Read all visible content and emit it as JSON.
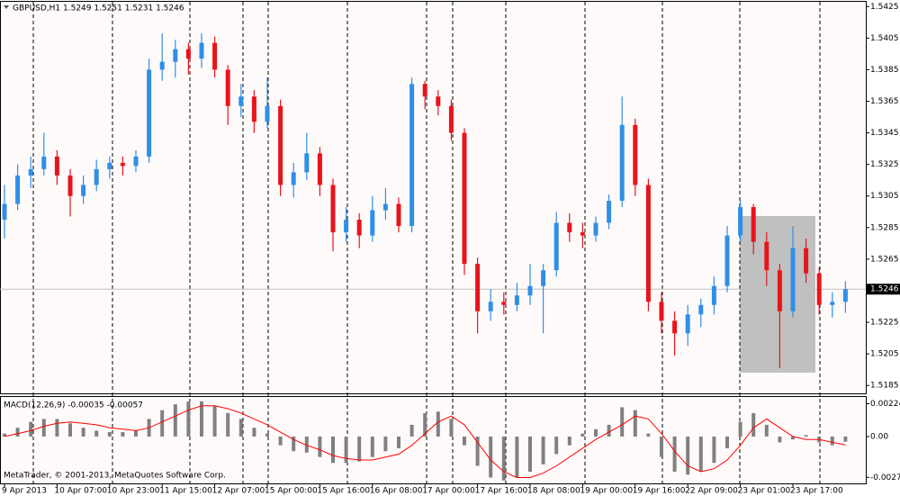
{
  "chart_data": [
    {
      "type": "candlestick",
      "title": "GBPUSD,H1  1.5249 1.5251 1.5231 1.5246",
      "categories": [
        "9 Apr 2013",
        null,
        null,
        null,
        "10 Apr 07:00",
        null,
        null,
        null,
        "10 Apr 23:00",
        null,
        null,
        null,
        "11 Apr 15:00",
        null,
        null,
        null,
        "12 Apr 07:00",
        null,
        null,
        null,
        "15 Apr 00:00",
        null,
        null,
        null,
        "15 Apr 16:00",
        null,
        null,
        null,
        "16 Apr 08:00",
        null,
        null,
        null,
        "17 Apr 00:00",
        null,
        null,
        null,
        "17 Apr 16:00",
        null,
        null,
        null,
        "18 Apr 08:00",
        null,
        null,
        null,
        "19 Apr 00:00",
        null,
        null,
        null,
        "19 Apr 16:00",
        null,
        null,
        null,
        "22 Apr 09:00",
        null,
        null,
        null,
        "23 Apr 01:00",
        null,
        null,
        null,
        "23 Apr 17:00",
        null,
        null,
        null,
        null
      ],
      "open": [
        1.529,
        1.53,
        1.5318,
        1.5322,
        1.533,
        1.5318,
        1.5305,
        1.5312,
        1.5322,
        1.5326,
        1.5324,
        1.533,
        1.5385,
        1.539,
        1.5398,
        1.5392,
        1.5402,
        1.5385,
        1.5362,
        1.5368,
        1.5352,
        1.5362,
        1.5312,
        1.532,
        1.5332,
        1.5312,
        1.5282,
        1.529,
        1.528,
        1.5296,
        1.53,
        1.5286,
        1.5376,
        1.5368,
        1.5362,
        1.5345,
        1.5262,
        1.5232,
        1.5238,
        1.5236,
        1.5242,
        1.5248,
        1.5258,
        1.5288,
        1.5282,
        1.528,
        1.5288,
        1.5302,
        1.535,
        1.5312,
        1.5238,
        1.5226,
        1.5218,
        1.523,
        1.5236,
        1.5248,
        1.528,
        1.5298,
        1.5276,
        1.5258,
        1.5232,
        1.5272,
        1.5256,
        1.5236,
        1.5238
      ],
      "high": [
        1.5312,
        1.5325,
        1.533,
        1.5345,
        1.5334,
        1.5322,
        1.5318,
        1.5328,
        1.533,
        1.533,
        1.5334,
        1.5392,
        1.5408,
        1.5404,
        1.5402,
        1.5408,
        1.5406,
        1.5388,
        1.5376,
        1.5372,
        1.538,
        1.5366,
        1.5326,
        1.5345,
        1.5336,
        1.5316,
        1.5298,
        1.5294,
        1.5305,
        1.531,
        1.5304,
        1.538,
        1.5378,
        1.5372,
        1.5366,
        1.5348,
        1.5266,
        1.5246,
        1.5244,
        1.525,
        1.5262,
        1.5262,
        1.5295,
        1.5294,
        1.5288,
        1.5292,
        1.5306,
        1.5368,
        1.5354,
        1.5316,
        1.5244,
        1.5232,
        1.5236,
        1.524,
        1.5254,
        1.5286,
        1.5302,
        1.53,
        1.5282,
        1.5262,
        1.5286,
        1.5278,
        1.526,
        1.5244,
        1.5251
      ],
      "low": [
        1.5278,
        1.5296,
        1.531,
        1.5318,
        1.5312,
        1.5292,
        1.53,
        1.5308,
        1.5316,
        1.5318,
        1.532,
        1.5326,
        1.5378,
        1.538,
        1.5382,
        1.5386,
        1.538,
        1.535,
        1.5355,
        1.5345,
        1.5348,
        1.5305,
        1.5304,
        1.5315,
        1.5305,
        1.527,
        1.5276,
        1.5272,
        1.5276,
        1.529,
        1.5282,
        1.5282,
        1.536,
        1.5356,
        1.534,
        1.5255,
        1.5218,
        1.5226,
        1.523,
        1.5232,
        1.5236,
        1.5218,
        1.5254,
        1.5276,
        1.5272,
        1.5276,
        1.5284,
        1.5298,
        1.5305,
        1.5232,
        1.5218,
        1.5204,
        1.521,
        1.5222,
        1.523,
        1.5244,
        1.5276,
        1.5268,
        1.5248,
        1.5196,
        1.5228,
        1.525,
        1.523,
        1.5228,
        1.5231
      ],
      "close": [
        1.53,
        1.5318,
        1.5322,
        1.533,
        1.5318,
        1.5305,
        1.5312,
        1.5322,
        1.5326,
        1.5324,
        1.533,
        1.5385,
        1.539,
        1.5398,
        1.5392,
        1.5402,
        1.5385,
        1.5362,
        1.5368,
        1.5352,
        1.5362,
        1.5312,
        1.532,
        1.5332,
        1.5312,
        1.5282,
        1.529,
        1.528,
        1.5296,
        1.53,
        1.5286,
        1.5376,
        1.5368,
        1.5362,
        1.5345,
        1.5262,
        1.5232,
        1.5238,
        1.5236,
        1.5242,
        1.5248,
        1.5258,
        1.5288,
        1.5282,
        1.528,
        1.5288,
        1.5302,
        1.535,
        1.5312,
        1.5238,
        1.5226,
        1.5218,
        1.523,
        1.5236,
        1.5248,
        1.528,
        1.5298,
        1.5276,
        1.5258,
        1.5232,
        1.5272,
        1.5256,
        1.5236,
        1.5238,
        1.5246
      ],
      "up_color": "#2f8fe6",
      "down_color": "#e8141c",
      "ylim": [
        1.518,
        1.5428
      ],
      "yticks": [
        1.5425,
        1.5405,
        1.5385,
        1.5365,
        1.5345,
        1.5325,
        1.5305,
        1.5285,
        1.5265,
        1.5225,
        1.5205,
        1.5185
      ],
      "current_price": 1.5246
    },
    {
      "type": "macd",
      "title": "MACD(12,26,9) -0.00035 -0.00057",
      "histogram_values": [
        0.0002,
        0.0006,
        0.001,
        0.0012,
        0.0012,
        0.0009,
        0.0006,
        0.0004,
        0.0003,
        0.0003,
        0.0004,
        0.0012,
        0.0018,
        0.0022,
        0.0024,
        0.0024,
        0.0021,
        0.0016,
        0.0012,
        0.0006,
        0.0002,
        -0.0006,
        -0.001,
        -0.0011,
        -0.0014,
        -0.0018,
        -0.0018,
        -0.0017,
        -0.0014,
        -0.001,
        -0.0008,
        0.0008,
        0.0016,
        0.0017,
        0.0012,
        -0.0006,
        -0.002,
        -0.0028,
        -0.003,
        -0.0028,
        -0.0024,
        -0.0019,
        -0.0012,
        -0.0006,
        0.0002,
        0.0005,
        0.0008,
        0.002,
        0.0018,
        0.0002,
        -0.0014,
        -0.0024,
        -0.0026,
        -0.0024,
        -0.0018,
        -0.0008,
        0.001,
        0.0016,
        0.0008,
        -0.0004,
        -0.0002,
        0.0001,
        -0.0004,
        -0.0006,
        -0.00035
      ],
      "histogram_color": "#808080",
      "signal_values": [
        0.0,
        0.0002,
        0.0004,
        0.0007,
        0.0009,
        0.001,
        0.0009,
        0.0008,
        0.0006,
        0.0005,
        0.0004,
        0.0006,
        0.001,
        0.0014,
        0.0018,
        0.0021,
        0.0021,
        0.0019,
        0.0016,
        0.0012,
        0.0008,
        0.0003,
        -0.0002,
        -0.0006,
        -0.0009,
        -0.0013,
        -0.0015,
        -0.0016,
        -0.0016,
        -0.0014,
        -0.0012,
        -0.0006,
        0.0002,
        0.001,
        0.0014,
        0.0008,
        -0.0004,
        -0.0016,
        -0.0024,
        -0.0028,
        -0.0028,
        -0.0025,
        -0.002,
        -0.0014,
        -0.0008,
        -0.0002,
        0.0003,
        0.0008,
        0.0014,
        0.0012,
        0.0002,
        -0.001,
        -0.002,
        -0.0024,
        -0.0022,
        -0.0016,
        -0.0006,
        0.0006,
        0.0012,
        0.0006,
        0.0,
        -0.0002,
        -0.0002,
        -0.0004,
        -0.00057
      ],
      "signal_color": "#ff0000",
      "ylim": [
        -0.0032,
        0.0027
      ],
      "yticks": [
        0.00224,
        {
          "value": 0,
          "label": "0.00"
        },
        -0.00279
      ],
      "footer": "MetaTrader, © 2001-2013, MetaQuotes Software Corp."
    }
  ]
}
